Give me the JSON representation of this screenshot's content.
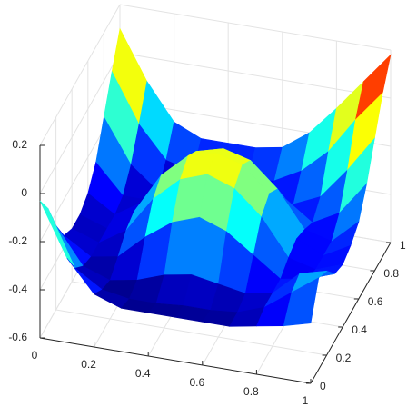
{
  "chart_data": {
    "type": "surface",
    "colormap": "jet",
    "grid": true,
    "x": [
      0,
      0.1,
      0.2,
      0.3,
      0.4,
      0.5,
      0.6,
      0.7,
      0.8,
      0.9,
      1
    ],
    "y": [
      0,
      0.1,
      0.2,
      0.3,
      0.4,
      0.5,
      0.6,
      0.7,
      0.8,
      0.9,
      1
    ],
    "z": [
      [
        -0.03,
        -0.25,
        -0.38,
        -0.42,
        -0.42,
        -0.42,
        -0.42,
        -0.42,
        -0.4,
        -0.38,
        -0.35
      ],
      [
        -0.12,
        -0.35,
        -0.42,
        -0.44,
        -0.44,
        -0.43,
        -0.43,
        -0.42,
        -0.38,
        -0.3,
        -0.22
      ],
      [
        -0.25,
        -0.4,
        -0.44,
        -0.42,
        -0.38,
        -0.36,
        -0.38,
        -0.4,
        -0.38,
        -0.28,
        -0.25
      ],
      [
        -0.35,
        -0.42,
        -0.4,
        -0.3,
        -0.22,
        -0.18,
        -0.22,
        -0.3,
        -0.38,
        -0.36,
        -0.32
      ],
      [
        -0.38,
        -0.42,
        -0.35,
        -0.2,
        -0.1,
        -0.06,
        -0.1,
        -0.2,
        -0.35,
        -0.38,
        -0.34
      ],
      [
        -0.38,
        -0.42,
        -0.33,
        -0.16,
        -0.06,
        -0.03,
        -0.06,
        -0.16,
        -0.33,
        -0.38,
        -0.32
      ],
      [
        -0.35,
        -0.42,
        -0.35,
        -0.2,
        -0.1,
        -0.07,
        -0.1,
        -0.2,
        -0.35,
        -0.38,
        -0.28
      ],
      [
        -0.28,
        -0.4,
        -0.4,
        -0.3,
        -0.22,
        -0.18,
        -0.22,
        -0.3,
        -0.38,
        -0.32,
        -0.18
      ],
      [
        -0.15,
        -0.33,
        -0.42,
        -0.4,
        -0.36,
        -0.35,
        -0.36,
        -0.38,
        -0.33,
        -0.2,
        -0.05
      ],
      [
        -0.02,
        -0.22,
        -0.35,
        -0.38,
        -0.38,
        -0.38,
        -0.36,
        -0.3,
        -0.2,
        -0.05,
        0.08
      ],
      [
        0.1,
        -0.1,
        -0.25,
        -0.3,
        -0.3,
        -0.3,
        -0.28,
        -0.2,
        -0.08,
        0.05,
        0.18
      ]
    ],
    "xlim": [
      0,
      1
    ],
    "ylim": [
      0,
      1
    ],
    "zlim": [
      -0.6,
      0.2
    ],
    "xticks": [
      0,
      0.2,
      0.4,
      0.6,
      0.8,
      1
    ],
    "yticks": [
      0,
      0.2,
      0.4,
      0.6,
      0.8,
      1
    ],
    "zticks": [
      -0.6,
      -0.4,
      -0.2,
      0,
      0.2
    ]
  }
}
